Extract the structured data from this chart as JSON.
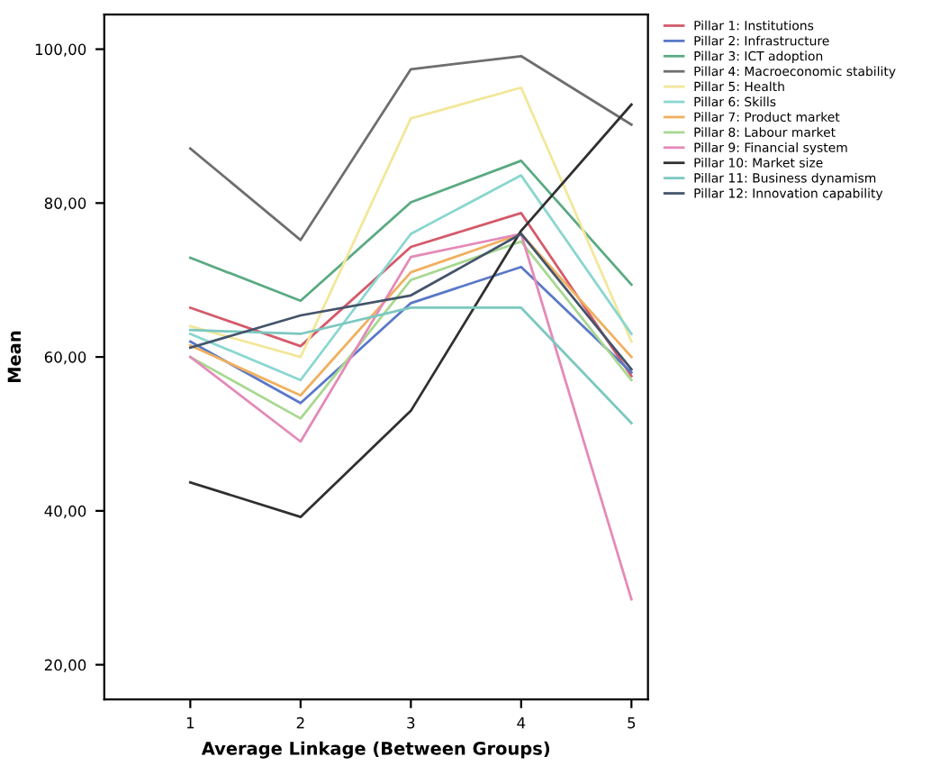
{
  "chart_data": {
    "type": "line",
    "xlabel": "Average Linkage (Between Groups)",
    "ylabel": "Mean",
    "x": [
      1,
      2,
      3,
      4,
      5
    ],
    "xlim": [
      0.22,
      5.15
    ],
    "xticks": [
      1,
      2,
      3,
      4,
      5
    ],
    "ylim": [
      15.5,
      104.5
    ],
    "yticks": [
      {
        "value": 20,
        "label": "20,00"
      },
      {
        "value": 40,
        "label": "40,00"
      },
      {
        "value": 60,
        "label": "60,00"
      },
      {
        "value": 80,
        "label": "80,00"
      },
      {
        "value": 100,
        "label": "100,00"
      }
    ],
    "grid": false,
    "legend": "right",
    "marker": "none",
    "line_style": "solid",
    "series": [
      {
        "name": "Pillar 1: Institutions",
        "color": "#d45a6a",
        "values": [
          66.4,
          61.4,
          74.3,
          78.7,
          57.5
        ]
      },
      {
        "name": "Pillar 2: Infrastructure",
        "color": "#5a78c8",
        "values": [
          62,
          54,
          67,
          71.7,
          58
        ]
      },
      {
        "name": "Pillar 3: ICT adoption",
        "color": "#5aaa82",
        "values": [
          72.9,
          67.3,
          80.1,
          85.5,
          69.4
        ]
      },
      {
        "name": "Pillar 4: Macroeconomic stability",
        "color": "#6e6e6e",
        "values": [
          87.1,
          75.2,
          97.4,
          99.1,
          90.2
        ]
      },
      {
        "name": "Pillar 5: Health",
        "color": "#f2e79a",
        "values": [
          64,
          60,
          91,
          95,
          62
        ]
      },
      {
        "name": "Pillar 6: Skills",
        "color": "#8ad6d0",
        "values": [
          63,
          57,
          76,
          83.6,
          63
        ]
      },
      {
        "name": "Pillar 7: Product market",
        "color": "#f0b060",
        "values": [
          61.5,
          55,
          71,
          76,
          60
        ]
      },
      {
        "name": "Pillar 8: Labour market",
        "color": "#a8d890",
        "values": [
          60,
          52,
          70,
          75,
          57
        ]
      },
      {
        "name": "Pillar 9: Financial system",
        "color": "#e48ab8",
        "values": [
          60,
          49,
          73,
          76,
          28.5
        ]
      },
      {
        "name": "Pillar 10: Market size",
        "color": "#303030",
        "values": [
          43.7,
          39.2,
          53,
          76.4,
          92.8
        ]
      },
      {
        "name": "Pillar 11: Business dynamism",
        "color": "#7cc8c0",
        "values": [
          63.5,
          63,
          66.4,
          66.4,
          51.4
        ]
      },
      {
        "name": "Pillar 12: Innovation capability",
        "color": "#44546a",
        "values": [
          61.2,
          65.4,
          68,
          76,
          58.4
        ]
      }
    ]
  }
}
